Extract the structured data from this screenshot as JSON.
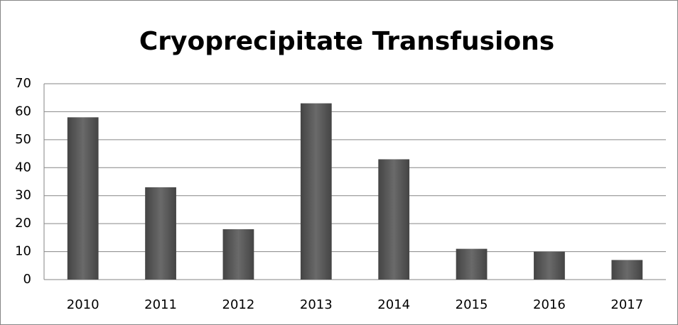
{
  "chart_data": {
    "type": "bar",
    "title": "Cryoprecipitate Transfusions",
    "categories": [
      "2010",
      "2011",
      "2012",
      "2013",
      "2014",
      "2015",
      "2016",
      "2017"
    ],
    "values": [
      58,
      33,
      18,
      63,
      43,
      11,
      10,
      7
    ],
    "color": "#555555",
    "ylim": [
      0,
      70
    ],
    "yticks": [
      0,
      10,
      20,
      30,
      40,
      50,
      60,
      70
    ],
    "grid": true
  }
}
